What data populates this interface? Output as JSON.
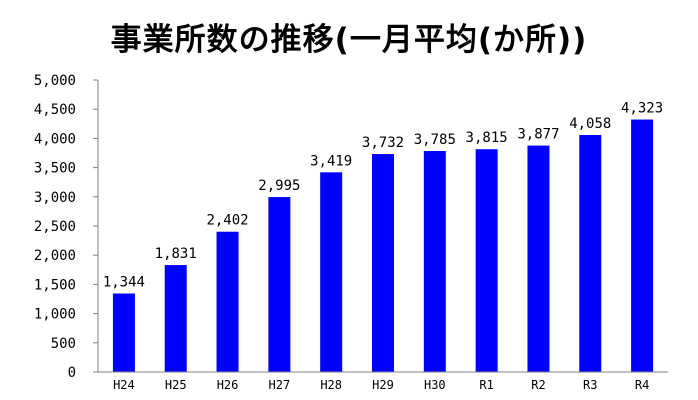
{
  "chart_data": {
    "type": "bar",
    "title": "事業所数の推移(一月平均(か所))",
    "categories": [
      "H24",
      "H25",
      "H26",
      "H27",
      "H28",
      "H29",
      "H30",
      "R1",
      "R2",
      "R3",
      "R4"
    ],
    "values": [
      1344,
      1831,
      2402,
      2995,
      3419,
      3732,
      3785,
      3815,
      3877,
      4058,
      4323
    ],
    "data_labels": [
      "1,344",
      "1,831",
      "2,402",
      "2,995",
      "3,419",
      "3,732",
      "3,785",
      "3,815",
      "3,877",
      "4,058",
      "4,323"
    ],
    "y_ticks": [
      0,
      500,
      1000,
      1500,
      2000,
      2500,
      3000,
      3500,
      4000,
      4500,
      5000
    ],
    "y_tick_labels": [
      "0",
      "500",
      "1,000",
      "1,500",
      "2,000",
      "2,500",
      "3,000",
      "3,500",
      "4,000",
      "4,500",
      "5,000"
    ],
    "ylim": [
      0,
      5000
    ],
    "xlabel": "",
    "ylabel": "",
    "grid": false,
    "legend": "none",
    "bar_color": "#0000ff",
    "axis_color": "#808080"
  }
}
